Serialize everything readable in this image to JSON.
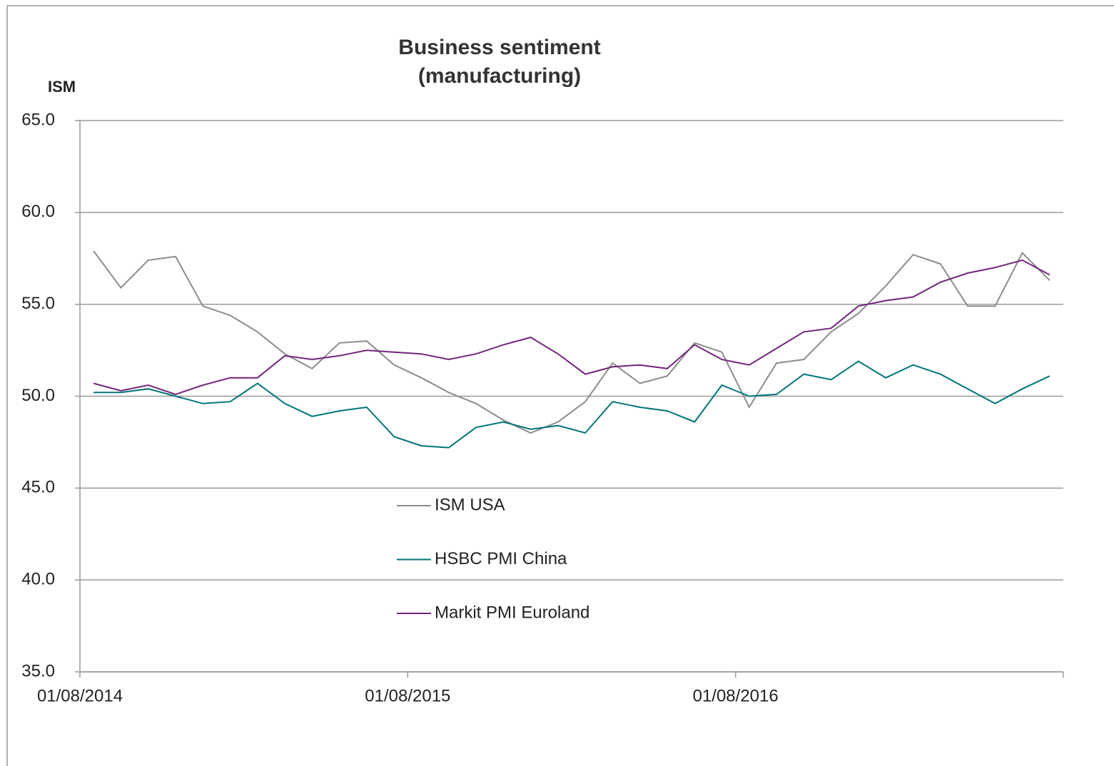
{
  "chart_data": {
    "type": "line",
    "title": [
      "Business sentiment",
      "(manufacturing)"
    ],
    "y_axis_label": "ISM",
    "categories": [
      "01/08/2014",
      null,
      null,
      null,
      null,
      null,
      null,
      null,
      null,
      null,
      null,
      null,
      "01/08/2015",
      null,
      null,
      null,
      null,
      null,
      null,
      null,
      null,
      null,
      null,
      null,
      "01/08/2016",
      null,
      null,
      null,
      null,
      null,
      null,
      null,
      null,
      null,
      null,
      null
    ],
    "series": [
      {
        "name": "ISM USA",
        "color": "#8c8c8c",
        "values": [
          57.9,
          55.9,
          57.4,
          57.6,
          54.9,
          54.4,
          53.5,
          52.3,
          51.5,
          52.9,
          53.0,
          51.7,
          51.0,
          50.2,
          49.6,
          48.7,
          48.0,
          48.6,
          49.7,
          51.8,
          50.7,
          51.1,
          52.9,
          52.4,
          49.4,
          51.8,
          52.0,
          53.5,
          54.5,
          56.0,
          57.7,
          57.2,
          54.9,
          54.9,
          57.8,
          56.3
        ]
      },
      {
        "name": "HSBC PMI China",
        "color": "#00757a",
        "values": [
          50.2,
          50.2,
          50.4,
          50.0,
          49.6,
          49.7,
          50.7,
          49.6,
          48.9,
          49.2,
          49.4,
          47.8,
          47.3,
          47.2,
          48.3,
          48.6,
          48.2,
          48.4,
          48.0,
          49.7,
          49.4,
          49.2,
          48.6,
          50.6,
          50.0,
          50.1,
          51.2,
          50.9,
          51.9,
          51.0,
          51.7,
          51.2,
          50.4,
          49.6,
          50.4,
          51.1
        ]
      },
      {
        "name": "Markit PMI Euroland",
        "color": "#70267a",
        "values": [
          50.7,
          50.3,
          50.6,
          50.1,
          50.6,
          51.0,
          51.0,
          52.2,
          52.0,
          52.2,
          52.5,
          52.4,
          52.3,
          52.0,
          52.3,
          52.8,
          53.2,
          52.3,
          51.2,
          51.6,
          51.7,
          51.5,
          52.8,
          52.0,
          51.7,
          52.6,
          53.5,
          53.7,
          54.9,
          55.2,
          55.4,
          56.2,
          56.7,
          57.0,
          57.4,
          56.6
        ]
      }
    ],
    "ylim": [
      35,
      65
    ],
    "yticks": [
      {
        "value": 35,
        "label": "35.0"
      },
      {
        "value": 40,
        "label": "40.0"
      },
      {
        "value": 45,
        "label": "45.0"
      },
      {
        "value": 50,
        "label": "50.0"
      },
      {
        "value": 55,
        "label": "55.0"
      },
      {
        "value": 60,
        "label": "60.0"
      },
      {
        "value": 65,
        "label": "65.0"
      }
    ],
    "grid": true
  }
}
